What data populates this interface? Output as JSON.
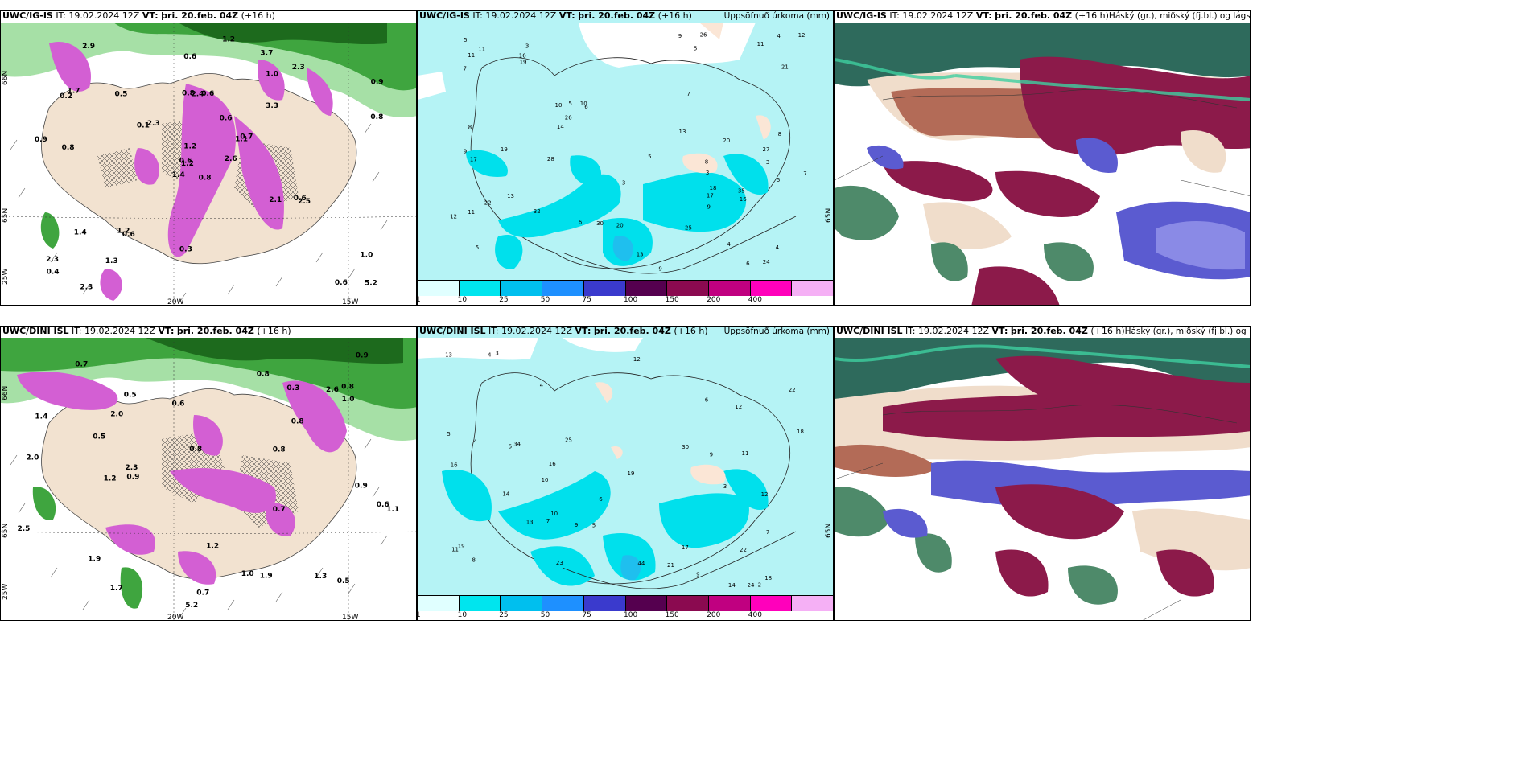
{
  "panels": [
    {
      "id": "tl",
      "model": "UWC/IG-IS",
      "it_label": "IT:",
      "it": "19.02.2024 12Z",
      "vt_label": "VT:",
      "vt": "þri. 20.feb. 04Z",
      "lead": "(+16 h)",
      "right": "",
      "lon_ticks": [
        "20W",
        "15W"
      ],
      "lat_ticks": [
        "66N",
        "65N",
        "25W"
      ]
    },
    {
      "id": "tm",
      "model": "UWC/IG-IS",
      "it_label": "IT:",
      "it": "19.02.2024 12Z",
      "vt_label": "VT:",
      "vt": "þri. 20.feb. 04Z",
      "lead": "(+16 h)",
      "right": "Uppsöfnuð úrkoma (mm)",
      "lat_ticks": [
        "65N"
      ]
    },
    {
      "id": "tr",
      "model": "UWC/IG-IS",
      "it_label": "IT:",
      "it": "19.02.2024 12Z",
      "vt_label": "VT:",
      "vt": "þri. 20.feb. 04Z",
      "lead": "(+16 h)",
      "right": "Háský (gr.), miðský (fj.bl.) og lágský (bl.)"
    },
    {
      "id": "bl",
      "model": "UWC/DINI ISL",
      "it_label": "IT:",
      "it": "19.02.2024 12Z",
      "vt_label": "VT:",
      "vt": "þri. 20.feb. 04Z",
      "lead": "(+16 h)",
      "right": "",
      "lon_ticks": [
        "20W",
        "15W"
      ],
      "lat_ticks": [
        "66N",
        "65N",
        "25W"
      ]
    },
    {
      "id": "bm",
      "model": "UWC/DINI ISL",
      "it_label": "IT:",
      "it": "19.02.2024 12Z",
      "vt_label": "VT:",
      "vt": "þri. 20.feb. 04Z",
      "lead": "(+16 h)",
      "right": "Uppsöfnuð úrkoma (mm)",
      "lat_ticks": [
        "65N"
      ]
    },
    {
      "id": "br",
      "model": "UWC/DINI ISL",
      "it_label": "IT:",
      "it": "19.02.2024 12Z",
      "vt_label": "VT:",
      "vt": "þri. 20.feb. 04Z",
      "lead": "(+16 h)",
      "right": "Háský (gr.), miðský (fj.bl.) og lágský (bl.)"
    }
  ],
  "colorbar": {
    "labels": [
      "1",
      "10",
      "25",
      "50",
      "75",
      "100",
      "150",
      "200",
      "400"
    ],
    "colors": [
      "#e0ffff",
      "#00e5ee",
      "#00bfee",
      "#1e90ff",
      "#3a3acd",
      "#55004f",
      "#8b0a50",
      "#c00080",
      "#ff00bb",
      "#f5b0f5"
    ]
  },
  "tl_values": [
    "0.8",
    "0.2",
    "1.2",
    "2.3",
    "1.1",
    "0.6",
    "3.7",
    "0.6",
    "1.0",
    "2.6",
    "2.9",
    "5.2",
    "0.8",
    "0.9",
    "1.4",
    "3.3",
    "2.3",
    "0.8",
    "0.6",
    "1.4",
    "2.3",
    "0.4",
    "1.3",
    "2.4",
    "0.7",
    "2.5",
    "1.7",
    "0.6",
    "0.9",
    "2.1",
    "0.8",
    "0.6",
    "0.3",
    "1.2",
    "0.5",
    "2.3",
    "1.2",
    "0.6",
    "1.0",
    "0.6",
    "1.2",
    "0.1"
  ],
  "tm_values": [
    "3",
    "3",
    "5",
    "3",
    "6",
    "4",
    "11",
    "5",
    "10",
    "9",
    "7",
    "9",
    "11",
    "4",
    "6",
    "8",
    "3",
    "5",
    "10",
    "13",
    "12",
    "11",
    "14",
    "5",
    "9",
    "16",
    "18",
    "17",
    "19",
    "20",
    "13",
    "25",
    "26",
    "28",
    "27",
    "16",
    "17",
    "19",
    "20",
    "22",
    "21",
    "26",
    "24",
    "30",
    "35",
    "32",
    "12",
    "11",
    "13",
    "8",
    "7",
    "5",
    "4",
    "8",
    "9",
    "6",
    "7",
    "5"
  ],
  "bl_values": [
    "1.4",
    "2.0",
    "0.8",
    "0.7",
    "2.6",
    "5.2",
    "0.7",
    "0.9",
    "0.8",
    "1.1",
    "0.6",
    "0.5",
    "0.8",
    "1.9",
    "2.0",
    "1.7",
    "2.3",
    "0.6",
    "0.5",
    "1.0",
    "1.3",
    "0.9",
    "0.8",
    "1.2",
    "0.3",
    "0.5",
    "1.0",
    "0.8",
    "0.7",
    "1.2",
    "2.5",
    "1.9",
    "0.9"
  ],
  "bm_values": [
    "6",
    "5",
    "4",
    "3",
    "2",
    "4",
    "5",
    "10",
    "7",
    "9",
    "11",
    "12",
    "13",
    "14",
    "16",
    "17",
    "19",
    "18",
    "22",
    "25",
    "24",
    "34",
    "21",
    "13",
    "22",
    "30",
    "44",
    "19",
    "12",
    "11",
    "10",
    "9",
    "8",
    "7",
    "6",
    "5",
    "4",
    "3",
    "14",
    "23",
    "16",
    "18",
    "12",
    "9"
  ]
}
